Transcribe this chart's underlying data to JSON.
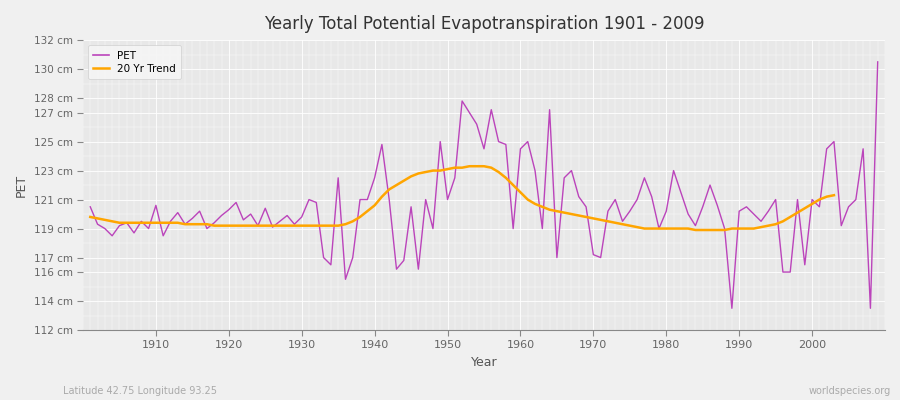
{
  "title": "Yearly Total Potential Evapotranspiration 1901 - 2009",
  "xlabel": "Year",
  "ylabel": "PET",
  "subtitle_left": "Latitude 42.75 Longitude 93.25",
  "subtitle_right": "worldspecies.org",
  "pet_color": "#BB44BB",
  "trend_color": "#FFA500",
  "bg_color": "#F0F0F0",
  "plot_bg_color": "#E8E8E8",
  "grid_color": "#FFFFFF",
  "years": [
    1901,
    1902,
    1903,
    1904,
    1905,
    1906,
    1907,
    1908,
    1909,
    1910,
    1911,
    1912,
    1913,
    1914,
    1915,
    1916,
    1917,
    1918,
    1919,
    1920,
    1921,
    1922,
    1923,
    1924,
    1925,
    1926,
    1927,
    1928,
    1929,
    1930,
    1931,
    1932,
    1933,
    1934,
    1935,
    1936,
    1937,
    1938,
    1939,
    1940,
    1941,
    1942,
    1943,
    1944,
    1945,
    1946,
    1947,
    1948,
    1949,
    1950,
    1951,
    1952,
    1953,
    1954,
    1955,
    1956,
    1957,
    1958,
    1959,
    1960,
    1961,
    1962,
    1963,
    1964,
    1965,
    1966,
    1967,
    1968,
    1969,
    1970,
    1971,
    1972,
    1973,
    1974,
    1975,
    1976,
    1977,
    1978,
    1979,
    1980,
    1981,
    1982,
    1983,
    1984,
    1985,
    1986,
    1987,
    1988,
    1989,
    1990,
    1991,
    1992,
    1993,
    1994,
    1995,
    1996,
    1997,
    1998,
    1999,
    2000,
    2001,
    2002,
    2003,
    2004,
    2005,
    2006,
    2007,
    2008,
    2009
  ],
  "pet": [
    120.5,
    119.3,
    119.0,
    118.5,
    119.2,
    119.4,
    118.7,
    119.5,
    119.0,
    120.6,
    118.5,
    119.5,
    120.1,
    119.3,
    119.7,
    120.2,
    119.0,
    119.4,
    119.9,
    120.3,
    120.8,
    119.6,
    120.0,
    119.2,
    120.4,
    119.1,
    119.5,
    119.9,
    119.3,
    119.8,
    121.0,
    120.8,
    117.0,
    116.5,
    122.5,
    115.5,
    117.0,
    121.0,
    121.0,
    122.5,
    124.8,
    121.0,
    116.2,
    116.8,
    120.5,
    116.2,
    121.0,
    119.0,
    125.0,
    121.0,
    122.5,
    127.8,
    127.0,
    126.2,
    124.5,
    127.2,
    125.0,
    124.8,
    119.0,
    124.5,
    125.0,
    123.0,
    119.0,
    127.2,
    117.0,
    122.5,
    123.0,
    121.2,
    120.5,
    117.2,
    117.0,
    120.2,
    121.0,
    119.5,
    120.2,
    121.0,
    122.5,
    121.2,
    119.0,
    120.2,
    123.0,
    121.5,
    120.0,
    119.2,
    120.5,
    122.0,
    120.6,
    119.0,
    113.5,
    120.2,
    120.5,
    120.0,
    119.5,
    120.2,
    121.0,
    116.0,
    116.0,
    121.0,
    116.5,
    121.0,
    120.5,
    124.5,
    125.0,
    119.2,
    120.5,
    121.0,
    124.5,
    113.5,
    130.5
  ],
  "trend": [
    119.8,
    119.7,
    119.6,
    119.5,
    119.4,
    119.4,
    119.4,
    119.4,
    119.4,
    119.4,
    119.4,
    119.4,
    119.4,
    119.3,
    119.3,
    119.3,
    119.3,
    119.2,
    119.2,
    119.2,
    119.2,
    119.2,
    119.2,
    119.2,
    119.2,
    119.2,
    119.2,
    119.2,
    119.2,
    119.2,
    119.2,
    119.2,
    119.2,
    119.2,
    119.2,
    119.3,
    119.5,
    119.8,
    120.2,
    120.6,
    121.2,
    121.7,
    122.0,
    122.3,
    122.6,
    122.8,
    122.9,
    123.0,
    123.0,
    123.1,
    123.2,
    123.2,
    123.3,
    123.3,
    123.3,
    123.2,
    122.9,
    122.5,
    122.0,
    121.5,
    121.0,
    120.7,
    120.5,
    120.3,
    120.2,
    120.1,
    120.0,
    119.9,
    119.8,
    119.7,
    119.6,
    119.5,
    119.4,
    119.3,
    119.2,
    119.1,
    119.0,
    119.0,
    119.0,
    119.0,
    119.0,
    119.0,
    119.0,
    118.9,
    118.9,
    118.9,
    118.9,
    118.9,
    119.0,
    119.0,
    119.0,
    119.0,
    119.1,
    119.2,
    119.3,
    119.5,
    119.8,
    120.1,
    120.4,
    120.7,
    121.0,
    121.2,
    121.3,
    null,
    null,
    null,
    null,
    null,
    null
  ],
  "ylim": [
    112,
    132
  ],
  "yticks": [
    112,
    114,
    116,
    117,
    119,
    121,
    123,
    125,
    127,
    128,
    130,
    132
  ],
  "xticks": [
    1910,
    1920,
    1930,
    1940,
    1950,
    1960,
    1970,
    1980,
    1990,
    2000
  ],
  "legend_pet": "PET",
  "legend_trend": "20 Yr Trend"
}
